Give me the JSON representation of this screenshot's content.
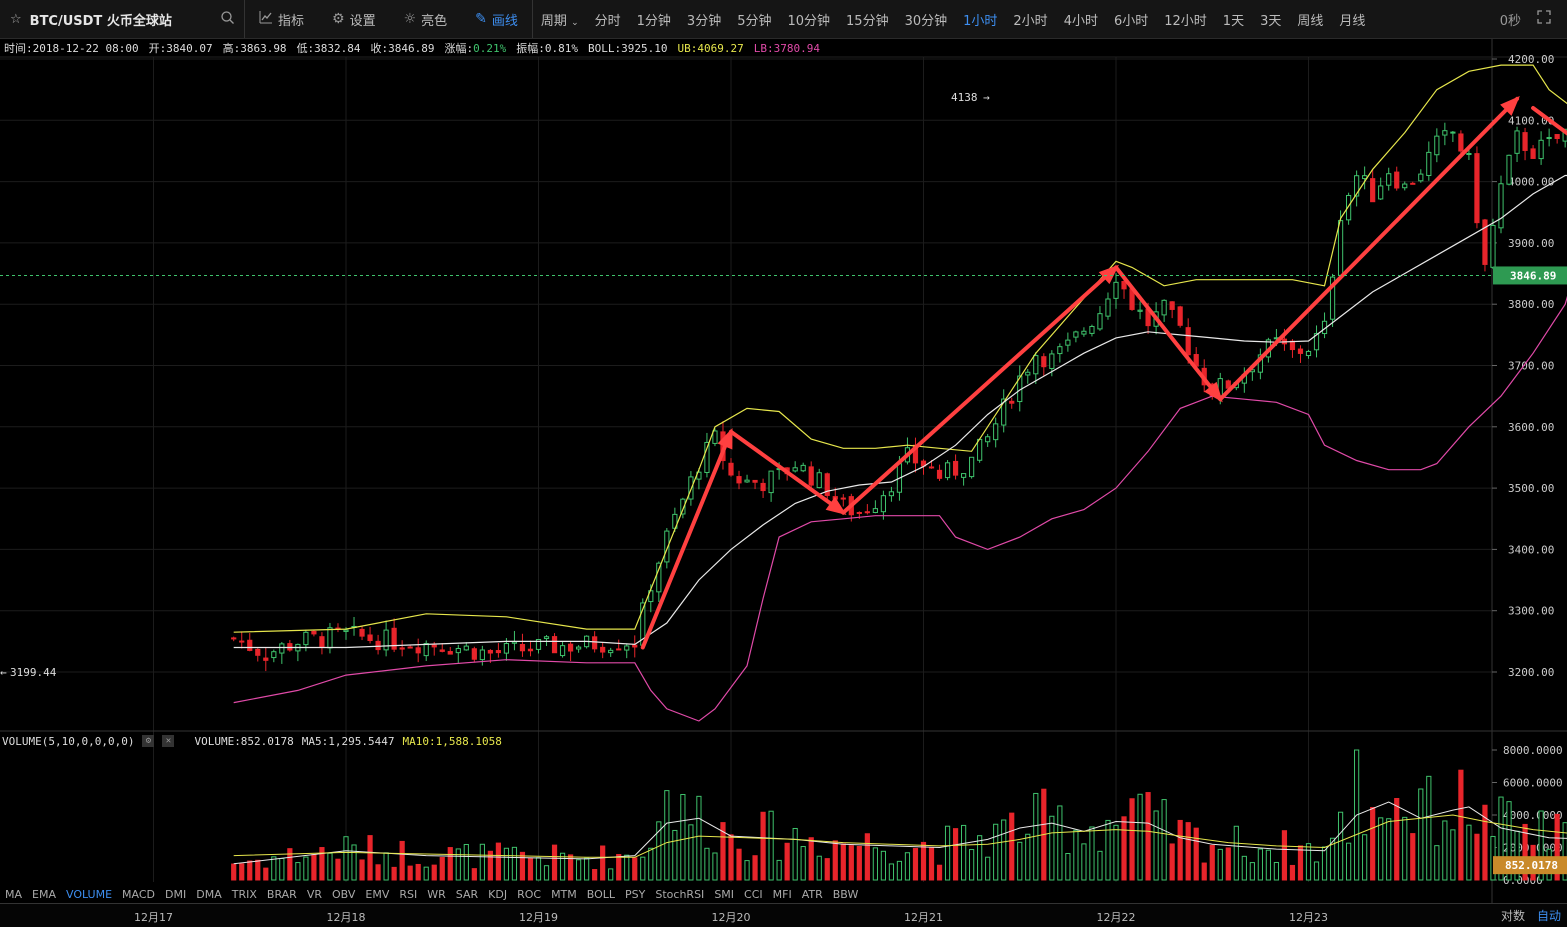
{
  "header": {
    "pair_title": "BTC/USDT 火币全球站",
    "tools": [
      {
        "label": "指标",
        "icon": "chart-line-icon"
      },
      {
        "label": "设置",
        "icon": "gear-icon"
      },
      {
        "label": "亮色",
        "icon": "sun-icon"
      },
      {
        "label": "画线",
        "icon": "pen-icon"
      }
    ],
    "period_dropdown": "周期",
    "periods": [
      "分时",
      "1分钟",
      "3分钟",
      "5分钟",
      "10分钟",
      "15分钟",
      "30分钟",
      "1小时",
      "2小时",
      "4小时",
      "6小时",
      "12小时",
      "1天",
      "3天",
      "周线",
      "月线"
    ],
    "active_period": "1小时",
    "countdown": "0秒"
  },
  "info": {
    "time": "时间:2018-12-22 08:00",
    "open": "开:3840.07",
    "high": "高:3863.98",
    "low": "低:3832.84",
    "close": "收:3846.89",
    "change_label": "涨幅:",
    "change_value": "0.21%",
    "amplitude": "振幅:0.81%",
    "boll": "BOLL:3925.10",
    "ub": "UB:4069.27",
    "lb": "LB:3780.94"
  },
  "volume_info": {
    "title": "VOLUME(5,10,0,0,0,0)",
    "volume": "VOLUME:852.0178",
    "ma5": "MA5:1,295.5447",
    "ma10": "MA10:1,588.1058"
  },
  "indicators": [
    "MA",
    "EMA",
    "VOLUME",
    "MACD",
    "DMI",
    "DMA",
    "TRIX",
    "BRAR",
    "VR",
    "OBV",
    "EMV",
    "RSI",
    "WR",
    "SAR",
    "KDJ",
    "ROC",
    "MTM",
    "BOLL",
    "PSY",
    "StochRSI",
    "SMI",
    "CCI",
    "MFI",
    "ATR",
    "BBW"
  ],
  "active_indicator": "VOLUME",
  "axis_buttons": {
    "log": "对数",
    "auto": "自动"
  },
  "colors": {
    "up": "#3fc26c",
    "down": "#e8252b",
    "ub": "#e6e64c",
    "mid": "#e8e8e8",
    "lb": "#e04aa8",
    "accent": "#3d8ef0",
    "arrow": "#ff4040"
  },
  "chart_data": {
    "type": "candlestick",
    "x_labels": [
      "12月17",
      "12月18",
      "12月19",
      "12月20",
      "12月21",
      "12月22",
      "12月23"
    ],
    "price_ticks": [
      "4200.00",
      "4100.00",
      "4000.00",
      "3900.00",
      "3800.00",
      "3700.00",
      "3600.00",
      "3500.00",
      "3400.00",
      "3300.00",
      "3200.00"
    ],
    "ylim": [
      3120,
      4230
    ],
    "volume_ticks": [
      "8000.0000",
      "6000.0000",
      "4000.0000",
      "2000.0000",
      "0.0000"
    ],
    "volume_ylim": [
      0,
      8500
    ],
    "current_price": "3846.89",
    "current_volume": "852.0178",
    "high_marker": "4138",
    "low_marker": "3199.44",
    "hours_start": -14,
    "close_path": [
      [
        -14,
        3255
      ],
      [
        -10,
        3230
      ],
      [
        -6,
        3250
      ],
      [
        0,
        3260
      ],
      [
        6,
        3250
      ],
      [
        12,
        3245
      ],
      [
        18,
        3230
      ],
      [
        24,
        3240
      ],
      [
        30,
        3245
      ],
      [
        34,
        3250
      ],
      [
        36,
        3250
      ],
      [
        38,
        3345
      ],
      [
        40,
        3420
      ],
      [
        42,
        3480
      ],
      [
        44,
        3540
      ],
      [
        46,
        3580
      ],
      [
        48,
        3520
      ],
      [
        50,
        3510
      ],
      [
        52,
        3510
      ],
      [
        54,
        3520
      ],
      [
        56,
        3540
      ],
      [
        58,
        3520
      ],
      [
        60,
        3500
      ],
      [
        62,
        3470
      ],
      [
        64,
        3460
      ],
      [
        66,
        3480
      ],
      [
        68,
        3510
      ],
      [
        70,
        3550
      ],
      [
        72,
        3540
      ],
      [
        74,
        3520
      ],
      [
        76,
        3530
      ],
      [
        78,
        3545
      ],
      [
        80,
        3580
      ],
      [
        82,
        3630
      ],
      [
        84,
        3680
      ],
      [
        86,
        3720
      ],
      [
        88,
        3710
      ],
      [
        90,
        3730
      ],
      [
        92,
        3760
      ],
      [
        94,
        3790
      ],
      [
        96,
        3850
      ],
      [
        98,
        3800
      ],
      [
        100,
        3770
      ],
      [
        102,
        3790
      ],
      [
        104,
        3760
      ],
      [
        106,
        3700
      ],
      [
        108,
        3660
      ],
      [
        110,
        3670
      ],
      [
        112,
        3690
      ],
      [
        114,
        3720
      ],
      [
        116,
        3735
      ],
      [
        118,
        3720
      ],
      [
        120,
        3730
      ],
      [
        122,
        3760
      ],
      [
        124,
        3950
      ],
      [
        126,
        4010
      ],
      [
        128,
        3980
      ],
      [
        130,
        4020
      ],
      [
        132,
        3990
      ],
      [
        134,
        4020
      ],
      [
        136,
        4060
      ],
      [
        138,
        4080
      ],
      [
        140,
        4030
      ],
      [
        142,
        3860
      ],
      [
        144,
        3990
      ],
      [
        146,
        4070
      ],
      [
        148,
        4050
      ],
      [
        150,
        4060
      ],
      [
        152,
        4080
      ],
      [
        154,
        4120
      ],
      [
        156,
        4060
      ],
      [
        158,
        4030
      ],
      [
        160,
        4000
      ],
      [
        162,
        3980
      ],
      [
        164,
        3960
      ],
      [
        166,
        3990
      ],
      [
        168,
        4010
      ],
      [
        170,
        4020
      ],
      [
        172,
        3990
      ],
      [
        174,
        3960
      ],
      [
        176,
        3930
      ],
      [
        178,
        3880
      ],
      [
        180,
        3810
      ],
      [
        182,
        3830
      ],
      [
        184,
        3847
      ]
    ],
    "bollinger": {
      "ub": [
        [
          -14,
          3265
        ],
        [
          0,
          3270
        ],
        [
          10,
          3295
        ],
        [
          20,
          3290
        ],
        [
          30,
          3270
        ],
        [
          36,
          3270
        ],
        [
          40,
          3400
        ],
        [
          44,
          3530
        ],
        [
          46,
          3600
        ],
        [
          50,
          3630
        ],
        [
          54,
          3625
        ],
        [
          58,
          3580
        ],
        [
          62,
          3565
        ],
        [
          66,
          3565
        ],
        [
          70,
          3570
        ],
        [
          74,
          3565
        ],
        [
          78,
          3560
        ],
        [
          82,
          3640
        ],
        [
          86,
          3720
        ],
        [
          90,
          3780
        ],
        [
          94,
          3840
        ],
        [
          96,
          3870
        ],
        [
          98,
          3860
        ],
        [
          102,
          3830
        ],
        [
          106,
          3840
        ],
        [
          112,
          3840
        ],
        [
          118,
          3840
        ],
        [
          122,
          3830
        ],
        [
          124,
          3940
        ],
        [
          128,
          4020
        ],
        [
          132,
          4080
        ],
        [
          136,
          4150
        ],
        [
          140,
          4180
        ],
        [
          144,
          4190
        ],
        [
          148,
          4190
        ],
        [
          150,
          4150
        ],
        [
          154,
          4110
        ],
        [
          160,
          4110
        ],
        [
          166,
          4110
        ],
        [
          170,
          4100
        ],
        [
          174,
          4095
        ],
        [
          176,
          4090
        ],
        [
          178,
          4095
        ],
        [
          180,
          4085
        ],
        [
          184,
          4069
        ]
      ],
      "mid": [
        [
          -14,
          3240
        ],
        [
          0,
          3240
        ],
        [
          10,
          3245
        ],
        [
          20,
          3250
        ],
        [
          30,
          3250
        ],
        [
          36,
          3245
        ],
        [
          40,
          3280
        ],
        [
          44,
          3350
        ],
        [
          48,
          3400
        ],
        [
          52,
          3440
        ],
        [
          56,
          3475
        ],
        [
          60,
          3495
        ],
        [
          64,
          3505
        ],
        [
          68,
          3510
        ],
        [
          72,
          3535
        ],
        [
          76,
          3570
        ],
        [
          80,
          3620
        ],
        [
          84,
          3660
        ],
        [
          88,
          3690
        ],
        [
          92,
          3720
        ],
        [
          96,
          3745
        ],
        [
          100,
          3755
        ],
        [
          104,
          3750
        ],
        [
          108,
          3745
        ],
        [
          112,
          3740
        ],
        [
          116,
          3738
        ],
        [
          120,
          3740
        ],
        [
          124,
          3780
        ],
        [
          128,
          3820
        ],
        [
          132,
          3850
        ],
        [
          136,
          3880
        ],
        [
          140,
          3910
        ],
        [
          144,
          3940
        ],
        [
          148,
          3980
        ],
        [
          152,
          4010
        ],
        [
          156,
          4010
        ],
        [
          160,
          4005
        ],
        [
          166,
          4000
        ],
        [
          170,
          3995
        ],
        [
          174,
          3980
        ],
        [
          178,
          3960
        ],
        [
          182,
          3940
        ],
        [
          184,
          3925
        ]
      ],
      "lb": [
        [
          -14,
          3150
        ],
        [
          -6,
          3170
        ],
        [
          0,
          3195
        ],
        [
          10,
          3210
        ],
        [
          20,
          3220
        ],
        [
          30,
          3215
        ],
        [
          36,
          3215
        ],
        [
          38,
          3170
        ],
        [
          40,
          3140
        ],
        [
          44,
          3120
        ],
        [
          46,
          3140
        ],
        [
          50,
          3210
        ],
        [
          52,
          3320
        ],
        [
          54,
          3420
        ],
        [
          58,
          3445
        ],
        [
          62,
          3450
        ],
        [
          66,
          3455
        ],
        [
          70,
          3455
        ],
        [
          74,
          3455
        ],
        [
          76,
          3420
        ],
        [
          80,
          3400
        ],
        [
          84,
          3420
        ],
        [
          88,
          3450
        ],
        [
          92,
          3465
        ],
        [
          96,
          3500
        ],
        [
          100,
          3560
        ],
        [
          104,
          3630
        ],
        [
          108,
          3650
        ],
        [
          112,
          3645
        ],
        [
          116,
          3640
        ],
        [
          120,
          3620
        ],
        [
          122,
          3570
        ],
        [
          126,
          3545
        ],
        [
          130,
          3530
        ],
        [
          134,
          3530
        ],
        [
          136,
          3540
        ],
        [
          140,
          3600
        ],
        [
          144,
          3650
        ],
        [
          148,
          3720
        ],
        [
          152,
          3800
        ],
        [
          154,
          3890
        ],
        [
          158,
          3900
        ],
        [
          164,
          3900
        ],
        [
          170,
          3895
        ],
        [
          174,
          3890
        ],
        [
          176,
          3860
        ],
        [
          180,
          3810
        ],
        [
          184,
          3781
        ]
      ]
    },
    "trend_arrows": [
      [
        [
          37,
          3240
        ],
        [
          48,
          3592
        ]
      ],
      [
        [
          48,
          3592
        ],
        [
          62,
          3460
        ]
      ],
      [
        [
          62,
          3460
        ],
        [
          96,
          3860
        ]
      ],
      [
        [
          96,
          3860
        ],
        [
          109,
          3645
        ]
      ],
      [
        [
          109,
          3645
        ],
        [
          146,
          4135
        ]
      ],
      [
        [
          148,
          4120
        ],
        [
          181,
          3800
        ]
      ],
      [
        [
          182,
          3802
        ],
        [
          190,
          3910
        ]
      ]
    ],
    "volume_ma5": [
      [
        -14,
        1000
      ],
      [
        0,
        1800
      ],
      [
        10,
        1500
      ],
      [
        20,
        1400
      ],
      [
        30,
        1300
      ],
      [
        36,
        1500
      ],
      [
        40,
        3500
      ],
      [
        44,
        3800
      ],
      [
        48,
        2700
      ],
      [
        56,
        2500
      ],
      [
        62,
        2200
      ],
      [
        68,
        2100
      ],
      [
        74,
        2000
      ],
      [
        80,
        2500
      ],
      [
        84,
        3200
      ],
      [
        88,
        3500
      ],
      [
        92,
        3000
      ],
      [
        96,
        3600
      ],
      [
        100,
        3500
      ],
      [
        104,
        2600
      ],
      [
        108,
        2200
      ],
      [
        116,
        1900
      ],
      [
        122,
        1800
      ],
      [
        126,
        4000
      ],
      [
        130,
        4800
      ],
      [
        134,
        3800
      ],
      [
        138,
        4300
      ],
      [
        140,
        4500
      ],
      [
        144,
        3200
      ],
      [
        150,
        2600
      ],
      [
        156,
        2500
      ],
      [
        162,
        2400
      ],
      [
        168,
        2300
      ],
      [
        174,
        2200
      ],
      [
        180,
        2000
      ],
      [
        184,
        1300
      ]
    ],
    "volume_ma10": [
      [
        -14,
        1500
      ],
      [
        0,
        1700
      ],
      [
        10,
        1600
      ],
      [
        20,
        1500
      ],
      [
        30,
        1400
      ],
      [
        36,
        1400
      ],
      [
        40,
        2300
      ],
      [
        44,
        2700
      ],
      [
        50,
        2600
      ],
      [
        56,
        2500
      ],
      [
        62,
        2300
      ],
      [
        68,
        2200
      ],
      [
        74,
        2100
      ],
      [
        80,
        2200
      ],
      [
        84,
        2500
      ],
      [
        88,
        2900
      ],
      [
        92,
        3000
      ],
      [
        96,
        3100
      ],
      [
        100,
        3000
      ],
      [
        104,
        2700
      ],
      [
        110,
        2300
      ],
      [
        116,
        2100
      ],
      [
        122,
        2000
      ],
      [
        126,
        2800
      ],
      [
        130,
        3600
      ],
      [
        134,
        3800
      ],
      [
        138,
        4000
      ],
      [
        142,
        3600
      ],
      [
        148,
        3100
      ],
      [
        154,
        2800
      ],
      [
        160,
        2600
      ],
      [
        166,
        2500
      ],
      [
        172,
        2300
      ],
      [
        178,
        2100
      ],
      [
        184,
        1600
      ]
    ]
  }
}
